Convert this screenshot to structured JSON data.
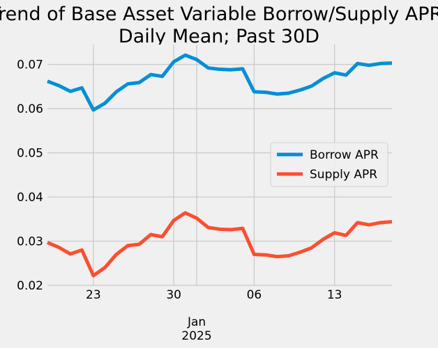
{
  "chart_data": {
    "type": "line",
    "title_lines": [
      "Trend of Base Asset Variable Borrow/Supply APR;",
      "Daily Mean; Past 30D"
    ],
    "xlabel": "",
    "ylabel": "",
    "x": [
      "2024-12-19",
      "2024-12-20",
      "2024-12-21",
      "2024-12-22",
      "2024-12-23",
      "2024-12-24",
      "2024-12-25",
      "2024-12-26",
      "2024-12-27",
      "2024-12-28",
      "2024-12-29",
      "2024-12-30",
      "2024-12-31",
      "2025-01-01",
      "2025-01-02",
      "2025-01-03",
      "2025-01-04",
      "2025-01-05",
      "2025-01-06",
      "2025-01-07",
      "2025-01-08",
      "2025-01-09",
      "2025-01-10",
      "2025-01-11",
      "2025-01-12",
      "2025-01-13",
      "2025-01-14",
      "2025-01-15",
      "2025-01-16",
      "2025-01-17",
      "2025-01-18"
    ],
    "xlim": [
      "2024-12-19",
      "2025-01-18"
    ],
    "ylim": [
      0.02,
      0.0745
    ],
    "x_ticks": [
      {
        "date": "2024-12-23",
        "label": "23"
      },
      {
        "date": "2024-12-30",
        "label": "30"
      },
      {
        "date": "2025-01-06",
        "label": "06"
      },
      {
        "date": "2025-01-13",
        "label": "13"
      }
    ],
    "x_major_tick": {
      "date": "2025-01-01",
      "label_line1": "Jan",
      "label_line2": "2025"
    },
    "y_ticks": [
      {
        "value": 0.02,
        "label": "0.02"
      },
      {
        "value": 0.03,
        "label": "0.03"
      },
      {
        "value": 0.04,
        "label": "0.04"
      },
      {
        "value": 0.05,
        "label": "0.05"
      },
      {
        "value": 0.06,
        "label": "0.06"
      },
      {
        "value": 0.07,
        "label": "0.07"
      }
    ],
    "grid": true,
    "legend_position": "center-right",
    "series": [
      {
        "name": "Borrow APR",
        "color": "#008fd5",
        "values": [
          0.0662,
          0.0652,
          0.0639,
          0.0647,
          0.0597,
          0.0612,
          0.0638,
          0.0656,
          0.0659,
          0.0677,
          0.0673,
          0.0706,
          0.0721,
          0.0711,
          0.0692,
          0.0689,
          0.0688,
          0.069,
          0.0638,
          0.0637,
          0.0633,
          0.0635,
          0.0642,
          0.0651,
          0.0668,
          0.0681,
          0.0676,
          0.0702,
          0.0698,
          0.0702,
          0.0703
        ]
      },
      {
        "name": "Supply APR",
        "color": "#fc4f30",
        "values": [
          0.0297,
          0.0286,
          0.0271,
          0.028,
          0.0222,
          0.024,
          0.027,
          0.029,
          0.0293,
          0.0315,
          0.031,
          0.0347,
          0.0364,
          0.0352,
          0.0331,
          0.0327,
          0.0326,
          0.0329,
          0.027,
          0.0269,
          0.0265,
          0.0267,
          0.0275,
          0.0285,
          0.0304,
          0.0319,
          0.0313,
          0.0342,
          0.0337,
          0.0342,
          0.0344
        ]
      }
    ]
  }
}
